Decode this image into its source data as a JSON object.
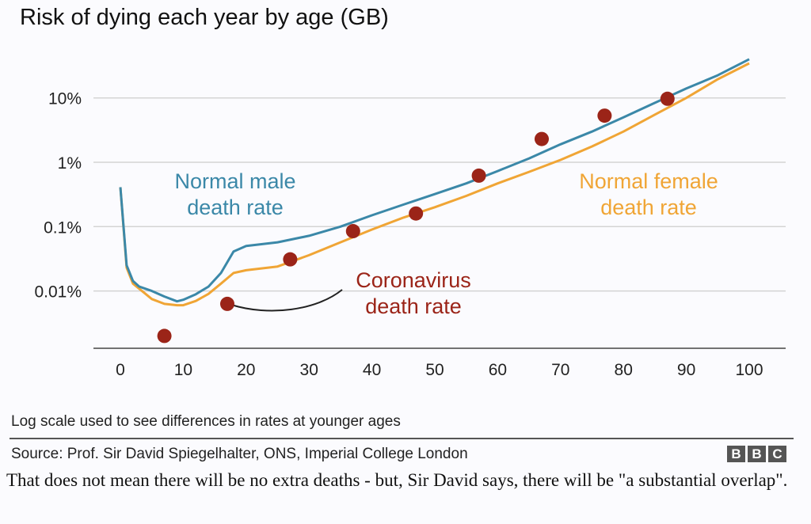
{
  "chart_data": {
    "type": "line",
    "title": "Risk of dying each year by age (GB)",
    "xlabel": "",
    "ylabel": "",
    "y_scale": "log",
    "x_ticks": [
      "0",
      "10",
      "20",
      "30",
      "40",
      "50",
      "60",
      "70",
      "80",
      "90",
      "100"
    ],
    "y_ticks": [
      {
        "value": 10,
        "label": "10%"
      },
      {
        "value": 1,
        "label": "1%"
      },
      {
        "value": 0.1,
        "label": "0.1%"
      },
      {
        "value": 0.01,
        "label": "0.01%"
      }
    ],
    "xlim": [
      0,
      100
    ],
    "grid": true,
    "series": [
      {
        "name": "Normal male death rate",
        "label_lines": [
          "Normal male",
          "death rate"
        ],
        "color": "#3b88a8",
        "type": "line",
        "x": [
          0,
          1,
          2,
          3,
          5,
          7,
          9,
          10,
          12,
          14,
          16,
          18,
          20,
          25,
          30,
          35,
          40,
          45,
          50,
          55,
          60,
          65,
          70,
          75,
          80,
          85,
          90,
          95,
          100
        ],
        "y": [
          0.41,
          0.025,
          0.0143,
          0.0117,
          0.01,
          0.0082,
          0.0069,
          0.0073,
          0.0089,
          0.0117,
          0.019,
          0.041,
          0.05,
          0.057,
          0.072,
          0.1,
          0.15,
          0.22,
          0.32,
          0.47,
          0.73,
          1.15,
          1.9,
          3.0,
          5.0,
          8.4,
          14,
          22.5,
          40
        ]
      },
      {
        "name": "Normal female death rate",
        "label_lines": [
          "Normal female",
          "death rate"
        ],
        "color": "#f0a535",
        "type": "line",
        "x": [
          0,
          1,
          2,
          4,
          5,
          7,
          9,
          10,
          12,
          14,
          16,
          18,
          20,
          25,
          30,
          35,
          40,
          45,
          50,
          55,
          60,
          65,
          70,
          75,
          80,
          85,
          90,
          95,
          100
        ],
        "y": [
          0.41,
          0.023,
          0.013,
          0.009,
          0.0075,
          0.0063,
          0.006,
          0.006,
          0.007,
          0.009,
          0.013,
          0.019,
          0.021,
          0.024,
          0.036,
          0.057,
          0.09,
          0.138,
          0.2,
          0.3,
          0.47,
          0.71,
          1.09,
          1.76,
          3.0,
          5.5,
          10,
          19.5,
          34.5
        ]
      },
      {
        "name": "Coronavirus death rate",
        "label_lines": [
          "Coronavirus",
          "death rate"
        ],
        "color": "#9b2418",
        "type": "scatter",
        "x": [
          7,
          17,
          27,
          37,
          47,
          57,
          67,
          77,
          87
        ],
        "y": [
          0.002,
          0.0063,
          0.031,
          0.085,
          0.16,
          0.62,
          2.3,
          5.3,
          9.7
        ]
      }
    ]
  },
  "note": "Log scale used to see differences in rates at younger ages",
  "source": "Source: Prof. Sir David Spiegelhalter, ONS, Imperial College London",
  "logo": [
    "B",
    "B",
    "C"
  ],
  "body_text": "That does not mean there will be no extra deaths - but, Sir David says, there will be \"a substantial overlap\"."
}
